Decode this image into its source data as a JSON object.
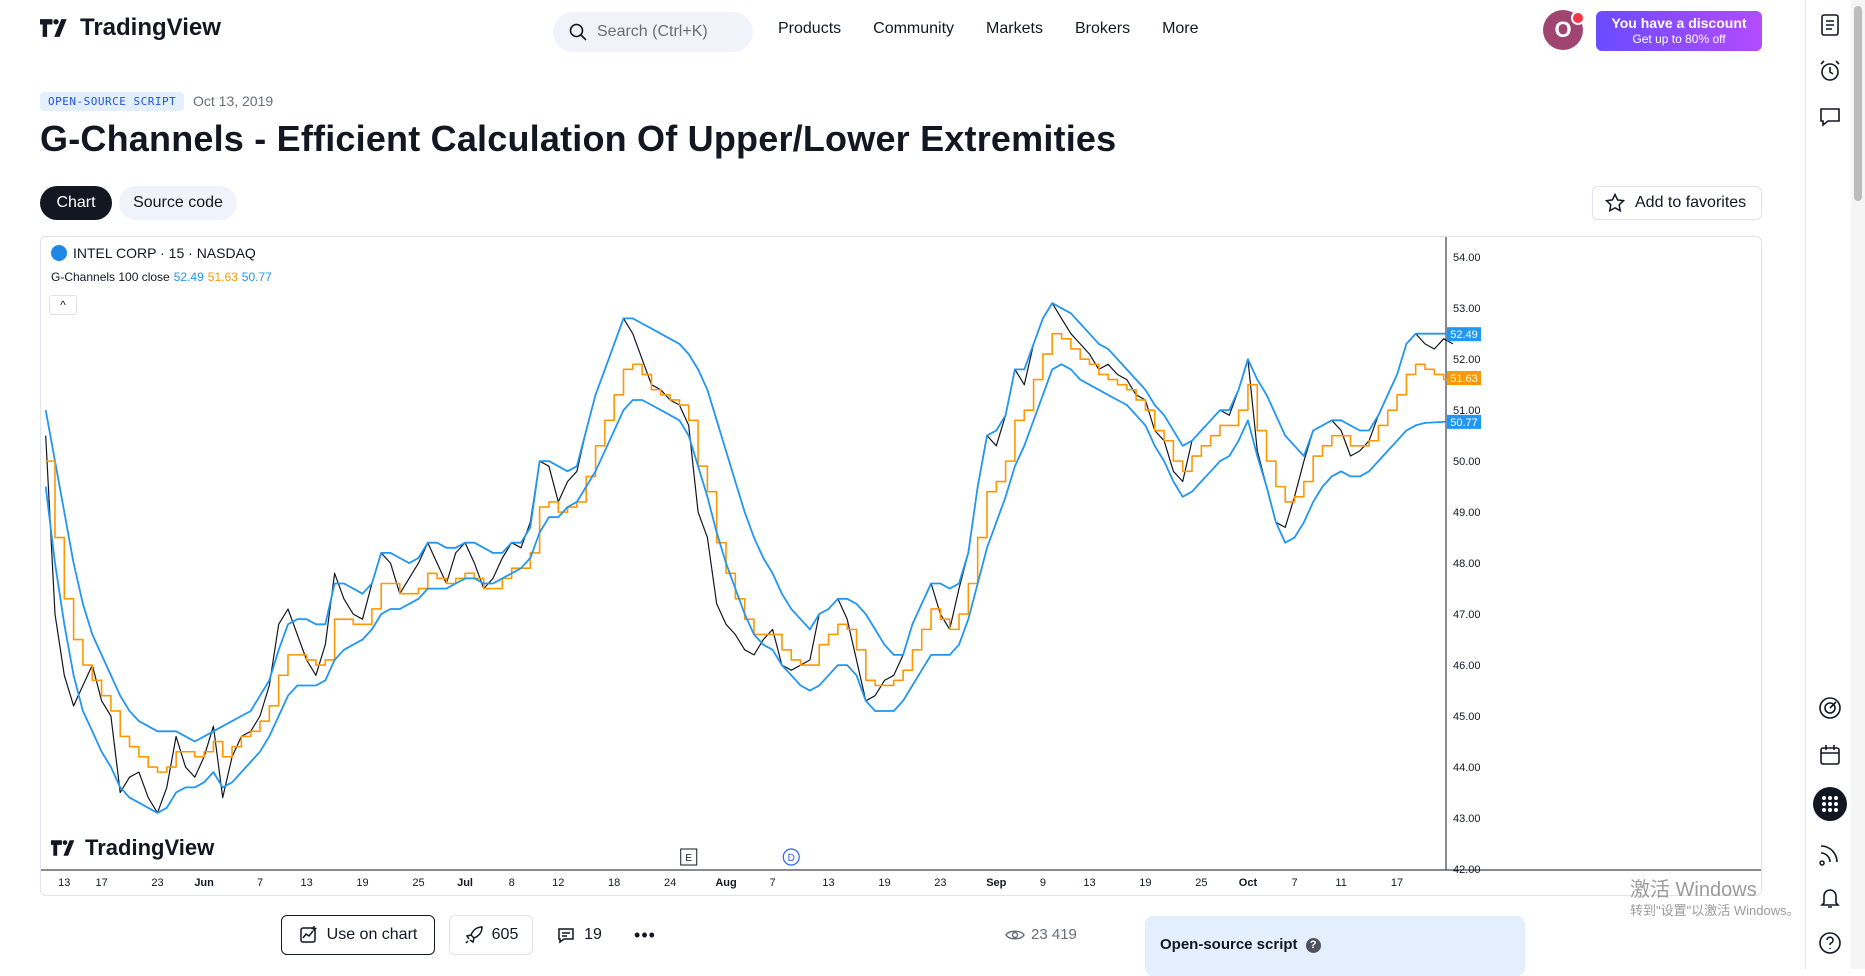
{
  "brand": {
    "name": "TradingView"
  },
  "header": {
    "search_placeholder": "Search (Ctrl+K)",
    "nav": [
      "Products",
      "Community",
      "Markets",
      "Brokers",
      "More"
    ],
    "avatar_letter": "O",
    "promo_line1": "You have a discount",
    "promo_line2": "Get up to 80% off"
  },
  "script": {
    "badge": "OPEN-SOURCE SCRIPT",
    "date": "Oct 13, 2019",
    "title": "G-Channels - Efficient Calculation Of Upper/Lower Extremities"
  },
  "tabs": {
    "chart": "Chart",
    "source": "Source code"
  },
  "favorites_label": "Add to favorites",
  "chart_data": {
    "type": "line",
    "symbol": "INTEL CORP · 15 · NASDAQ",
    "indicator": {
      "name": "G-Channels 100 close",
      "upper": "52.49",
      "middle": "51.63",
      "lower": "50.77"
    },
    "y_ticks": [
      "54.00",
      "53.00",
      "52.00",
      "51.00",
      "50.00",
      "49.00",
      "48.00",
      "47.00",
      "46.00",
      "45.00",
      "44.00",
      "43.00",
      "42.00"
    ],
    "ylim": [
      42,
      54.2
    ],
    "x_ticks": [
      "13",
      "17",
      "23",
      "Jun",
      "7",
      "13",
      "19",
      "25",
      "Jul",
      "8",
      "12",
      "18",
      "24",
      "Aug",
      "7",
      "13",
      "19",
      "23",
      "Sep",
      "9",
      "13",
      "19",
      "25",
      "Oct",
      "7",
      "11",
      "17"
    ],
    "x_tick_index": [
      2,
      6,
      12,
      17,
      23,
      28,
      34,
      40,
      45,
      50,
      55,
      61,
      67,
      73,
      78,
      84,
      90,
      96,
      102,
      107,
      112,
      118,
      124,
      129,
      134,
      139,
      145
    ],
    "x_count": 150,
    "event_markers": [
      "E",
      "D"
    ],
    "event_index": [
      69,
      80
    ],
    "colors": {
      "price": "#131722",
      "upper": "#2196f3",
      "middle": "#ff9800",
      "lower": "#2196f3",
      "grid": "#ffffff"
    },
    "series": [
      {
        "name": "close",
        "values": [
          50.5,
          47.0,
          45.8,
          45.2,
          45.6,
          46.0,
          45.3,
          45.0,
          43.5,
          43.8,
          43.9,
          43.4,
          43.1,
          43.6,
          44.6,
          44.0,
          43.8,
          44.2,
          44.8,
          43.4,
          44.2,
          44.6,
          44.7,
          45.0,
          45.6,
          46.8,
          47.1,
          46.6,
          46.1,
          45.8,
          46.4,
          47.8,
          47.3,
          47.0,
          46.9,
          47.6,
          48.2,
          48.0,
          47.4,
          47.7,
          48.0,
          48.4,
          48.0,
          47.6,
          48.2,
          48.4,
          48.0,
          47.5,
          47.7,
          48.1,
          48.4,
          48.3,
          48.8,
          50.0,
          49.9,
          49.2,
          49.6,
          49.8,
          50.6,
          51.3,
          51.8,
          52.3,
          52.8,
          52.5,
          52.0,
          51.5,
          51.4,
          51.2,
          51.1,
          50.7,
          49.0,
          48.5,
          47.2,
          46.8,
          46.6,
          46.3,
          46.2,
          46.5,
          46.7,
          46.0,
          45.9,
          46.0,
          46.1,
          47.0,
          47.1,
          47.3,
          46.9,
          46.1,
          45.3,
          45.4,
          45.7,
          45.8,
          46.2,
          46.8,
          47.2,
          47.6,
          47.0,
          46.7,
          47.5,
          48.2,
          49.5,
          50.5,
          50.3,
          50.9,
          51.8,
          51.5,
          52.3,
          52.8,
          53.1,
          52.8,
          52.5,
          52.3,
          52.1,
          51.8,
          51.9,
          51.7,
          51.6,
          51.3,
          51.2,
          50.6,
          50.4,
          49.8,
          49.6,
          50.4,
          50.6,
          50.8,
          51.0,
          50.9,
          51.4,
          52.0,
          50.2,
          49.5,
          48.8,
          48.7,
          49.3,
          50.0,
          50.6,
          50.7,
          50.8,
          50.6,
          50.1,
          50.2,
          50.4,
          50.9,
          51.3,
          51.7,
          52.3,
          52.5,
          52.3,
          52.2,
          52.4,
          52.3
        ]
      },
      {
        "name": "upper",
        "values": [
          51.0,
          50.0,
          49.0,
          48.0,
          47.2,
          46.6,
          46.2,
          45.8,
          45.4,
          45.1,
          44.9,
          44.8,
          44.7,
          44.7,
          44.7,
          44.6,
          44.5,
          44.6,
          44.7,
          44.8,
          44.9,
          45.0,
          45.1,
          45.4,
          45.7,
          46.3,
          46.8,
          46.9,
          46.9,
          46.8,
          46.8,
          47.6,
          47.6,
          47.5,
          47.4,
          47.6,
          48.2,
          48.2,
          48.1,
          48.0,
          48.1,
          48.4,
          48.4,
          48.3,
          48.3,
          48.4,
          48.4,
          48.3,
          48.2,
          48.2,
          48.4,
          48.4,
          48.7,
          50.0,
          50.0,
          49.9,
          49.8,
          49.9,
          50.6,
          51.3,
          51.8,
          52.3,
          52.8,
          52.8,
          52.7,
          52.6,
          52.5,
          52.4,
          52.3,
          52.1,
          51.8,
          51.4,
          50.8,
          50.2,
          49.6,
          49.0,
          48.5,
          48.1,
          47.8,
          47.4,
          47.1,
          46.9,
          46.7,
          47.0,
          47.1,
          47.3,
          47.3,
          47.2,
          47.0,
          46.7,
          46.4,
          46.2,
          46.2,
          46.8,
          47.2,
          47.6,
          47.6,
          47.5,
          47.6,
          48.2,
          49.5,
          50.5,
          50.6,
          50.9,
          51.8,
          51.8,
          52.3,
          52.8,
          53.1,
          53.0,
          52.9,
          52.7,
          52.5,
          52.3,
          52.2,
          52.0,
          51.8,
          51.6,
          51.4,
          51.1,
          50.9,
          50.6,
          50.3,
          50.4,
          50.6,
          50.8,
          51.0,
          51.0,
          51.4,
          52.0,
          51.6,
          51.3,
          50.9,
          50.5,
          50.3,
          50.1,
          50.6,
          50.7,
          50.8,
          50.8,
          50.7,
          50.6,
          50.6,
          50.9,
          51.3,
          51.7,
          52.3,
          52.5,
          52.5,
          52.5,
          52.5,
          52.49
        ]
      },
      {
        "name": "middle",
        "values": [
          50.0,
          48.5,
          47.3,
          46.5,
          46.0,
          45.7,
          45.4,
          45.1,
          44.6,
          44.4,
          44.2,
          44.0,
          43.9,
          44.0,
          44.3,
          44.3,
          44.2,
          44.3,
          44.5,
          44.2,
          44.4,
          44.6,
          44.7,
          44.9,
          45.2,
          45.8,
          46.2,
          46.2,
          46.1,
          46.0,
          46.1,
          46.9,
          46.9,
          46.8,
          46.8,
          47.1,
          47.6,
          47.6,
          47.4,
          47.4,
          47.5,
          47.8,
          47.7,
          47.6,
          47.7,
          47.8,
          47.7,
          47.5,
          47.5,
          47.7,
          47.9,
          47.9,
          48.2,
          49.1,
          49.2,
          49.0,
          49.1,
          49.2,
          49.7,
          50.3,
          50.8,
          51.3,
          51.8,
          51.9,
          51.7,
          51.4,
          51.3,
          51.2,
          51.1,
          50.8,
          49.9,
          49.4,
          48.4,
          47.8,
          47.3,
          46.9,
          46.6,
          46.6,
          46.6,
          46.3,
          46.1,
          46.0,
          46.0,
          46.4,
          46.6,
          46.8,
          46.7,
          46.3,
          45.7,
          45.6,
          45.6,
          45.7,
          45.9,
          46.3,
          46.7,
          47.1,
          46.9,
          46.7,
          47.0,
          47.6,
          48.5,
          49.4,
          49.6,
          50.0,
          50.8,
          51.0,
          51.6,
          52.1,
          52.5,
          52.4,
          52.2,
          52.0,
          51.9,
          51.7,
          51.6,
          51.5,
          51.4,
          51.2,
          51.0,
          50.6,
          50.4,
          50.0,
          49.8,
          50.1,
          50.3,
          50.5,
          50.7,
          50.7,
          51.0,
          51.5,
          50.6,
          50.0,
          49.5,
          49.2,
          49.3,
          49.6,
          50.1,
          50.3,
          50.5,
          50.5,
          50.3,
          50.3,
          50.4,
          50.7,
          51.0,
          51.3,
          51.7,
          51.9,
          51.8,
          51.7,
          51.6,
          51.63
        ]
      },
      {
        "name": "lower",
        "values": [
          49.5,
          48.0,
          46.8,
          45.8,
          45.1,
          44.7,
          44.3,
          44.0,
          43.6,
          43.4,
          43.3,
          43.2,
          43.1,
          43.2,
          43.5,
          43.6,
          43.6,
          43.7,
          43.9,
          43.6,
          43.7,
          43.9,
          44.1,
          44.3,
          44.6,
          45.0,
          45.4,
          45.6,
          45.6,
          45.6,
          45.7,
          46.1,
          46.3,
          46.4,
          46.5,
          46.7,
          47.0,
          47.1,
          47.1,
          47.2,
          47.3,
          47.5,
          47.5,
          47.5,
          47.6,
          47.7,
          47.7,
          47.6,
          47.6,
          47.7,
          47.8,
          47.9,
          48.1,
          48.6,
          48.9,
          48.9,
          49.1,
          49.2,
          49.5,
          49.8,
          50.2,
          50.6,
          51.0,
          51.2,
          51.2,
          51.1,
          51.0,
          50.9,
          50.8,
          50.5,
          49.9,
          49.3,
          48.6,
          48.0,
          47.5,
          47.0,
          46.6,
          46.4,
          46.3,
          46.0,
          45.8,
          45.6,
          45.5,
          45.6,
          45.8,
          46.0,
          46.0,
          45.8,
          45.3,
          45.1,
          45.1,
          45.1,
          45.3,
          45.6,
          45.9,
          46.2,
          46.2,
          46.2,
          46.4,
          46.9,
          47.6,
          48.3,
          48.8,
          49.3,
          49.9,
          50.3,
          50.8,
          51.3,
          51.8,
          51.9,
          51.8,
          51.6,
          51.5,
          51.4,
          51.3,
          51.2,
          51.1,
          50.9,
          50.7,
          50.3,
          50.0,
          49.6,
          49.3,
          49.4,
          49.6,
          49.8,
          50.0,
          50.1,
          50.4,
          50.8,
          50.1,
          49.5,
          48.8,
          48.4,
          48.5,
          48.8,
          49.2,
          49.5,
          49.7,
          49.8,
          49.7,
          49.7,
          49.8,
          50.0,
          50.2,
          50.4,
          50.6,
          50.7,
          50.75,
          50.76,
          50.77,
          50.77
        ]
      }
    ]
  },
  "watermark": "TradingView",
  "actions": {
    "use_on_chart": "Use on chart",
    "boosts": "605",
    "comments": "19",
    "more": "•••",
    "views": "23 419"
  },
  "info": {
    "title": "Open-source script"
  },
  "os_watermark": {
    "line1": "激活 Windows",
    "line2": "转到\"设置\"以激活 Windows。"
  }
}
